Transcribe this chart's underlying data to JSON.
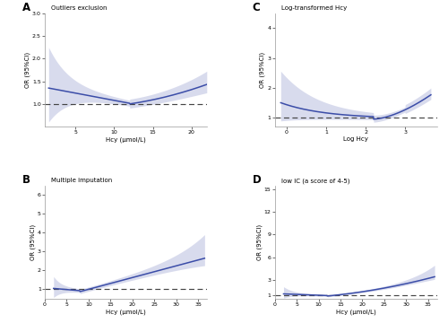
{
  "panels": [
    {
      "label": "A",
      "title": "Outliers exclusion",
      "xlabel": "Hcy (μmol/L)",
      "ylabel": "OR (95%CI)",
      "xlim": [
        1,
        22
      ],
      "ylim": [
        0.5,
        3.0
      ],
      "xticks": [
        5,
        10,
        15,
        20
      ],
      "yticks": [
        1.0,
        1.5,
        2.0,
        2.5,
        3.0
      ],
      "x_start": 1.5,
      "x_end": 22.0
    },
    {
      "label": "C",
      "title": "Log-transformed Hcy",
      "xlabel": "Log Hcy",
      "ylabel": "OR (95%CI)",
      "xlim": [
        -0.3,
        3.8
      ],
      "ylim": [
        0.7,
        4.5
      ],
      "xticks": [
        0,
        1,
        2,
        3
      ],
      "yticks": [
        1.0,
        2.0,
        3.0,
        4.0
      ],
      "x_start": -0.15,
      "x_end": 3.65
    },
    {
      "label": "B",
      "title": "Multiple imputation",
      "xlabel": "Hcy (μmol/L)",
      "ylabel": "OR (95%CI)",
      "xlim": [
        0,
        37
      ],
      "ylim": [
        0.5,
        6.5
      ],
      "xticks": [
        0,
        5,
        10,
        15,
        20,
        25,
        30,
        35
      ],
      "yticks": [
        1.0,
        2.0,
        3.0,
        4.0,
        5.0,
        6.0
      ],
      "x_start": 2.0,
      "x_end": 36.5
    },
    {
      "label": "D",
      "title": "low IC (a score of 4-5)",
      "xlabel": "Hcy (μmol/L)",
      "ylabel": "OR (95%CI)",
      "xlim": [
        0,
        37
      ],
      "ylim": [
        0.5,
        15.5
      ],
      "xticks": [
        0,
        5,
        10,
        15,
        20,
        25,
        30,
        35
      ],
      "yticks": [
        1.0,
        3.0,
        6.0,
        9.0,
        12.0,
        15.0
      ],
      "x_start": 2.0,
      "x_end": 36.5
    }
  ],
  "line_color": "#3b4da8",
  "fill_color": "#aab0d8",
  "fill_alpha": 0.45,
  "ref_color": "#444444",
  "bg_color": "#ffffff",
  "fig_bg": "#ffffff"
}
